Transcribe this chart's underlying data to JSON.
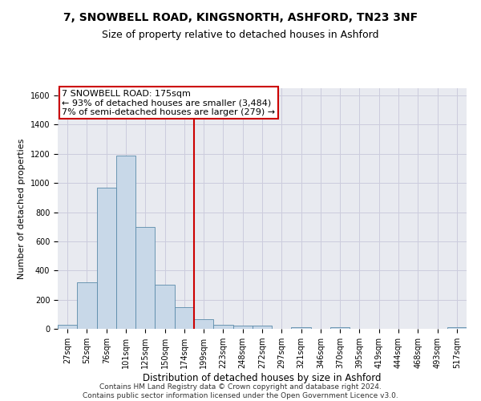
{
  "title1": "7, SNOWBELL ROAD, KINGSNORTH, ASHFORD, TN23 3NF",
  "title2": "Size of property relative to detached houses in Ashford",
  "xlabel": "Distribution of detached houses by size in Ashford",
  "ylabel": "Number of detached properties",
  "categories": [
    "27sqm",
    "52sqm",
    "76sqm",
    "101sqm",
    "125sqm",
    "150sqm",
    "174sqm",
    "199sqm",
    "223sqm",
    "248sqm",
    "272sqm",
    "297sqm",
    "321sqm",
    "346sqm",
    "370sqm",
    "395sqm",
    "419sqm",
    "444sqm",
    "468sqm",
    "493sqm",
    "517sqm"
  ],
  "values": [
    30,
    320,
    970,
    1190,
    700,
    305,
    150,
    65,
    30,
    20,
    20,
    0,
    10,
    0,
    10,
    0,
    0,
    0,
    0,
    0,
    10
  ],
  "bar_color": "#c8d8e8",
  "bar_edge_color": "#5a8aaa",
  "vline_color": "#cc0000",
  "vline_x_index": 6,
  "annotation_text": "7 SNOWBELL ROAD: 175sqm\n← 93% of detached houses are smaller (3,484)\n7% of semi-detached houses are larger (279) →",
  "annotation_box_color": "white",
  "annotation_box_edge_color": "#cc0000",
  "ylim": [
    0,
    1650
  ],
  "yticks": [
    0,
    200,
    400,
    600,
    800,
    1000,
    1200,
    1400,
    1600
  ],
  "grid_color": "#ccccdd",
  "bg_color": "#e8eaf0",
  "footer1": "Contains HM Land Registry data © Crown copyright and database right 2024.",
  "footer2": "Contains public sector information licensed under the Open Government Licence v3.0.",
  "title1_fontsize": 10,
  "title2_fontsize": 9,
  "xlabel_fontsize": 8.5,
  "ylabel_fontsize": 8,
  "tick_fontsize": 7,
  "footer_fontsize": 6.5,
  "ann_fontsize": 8
}
